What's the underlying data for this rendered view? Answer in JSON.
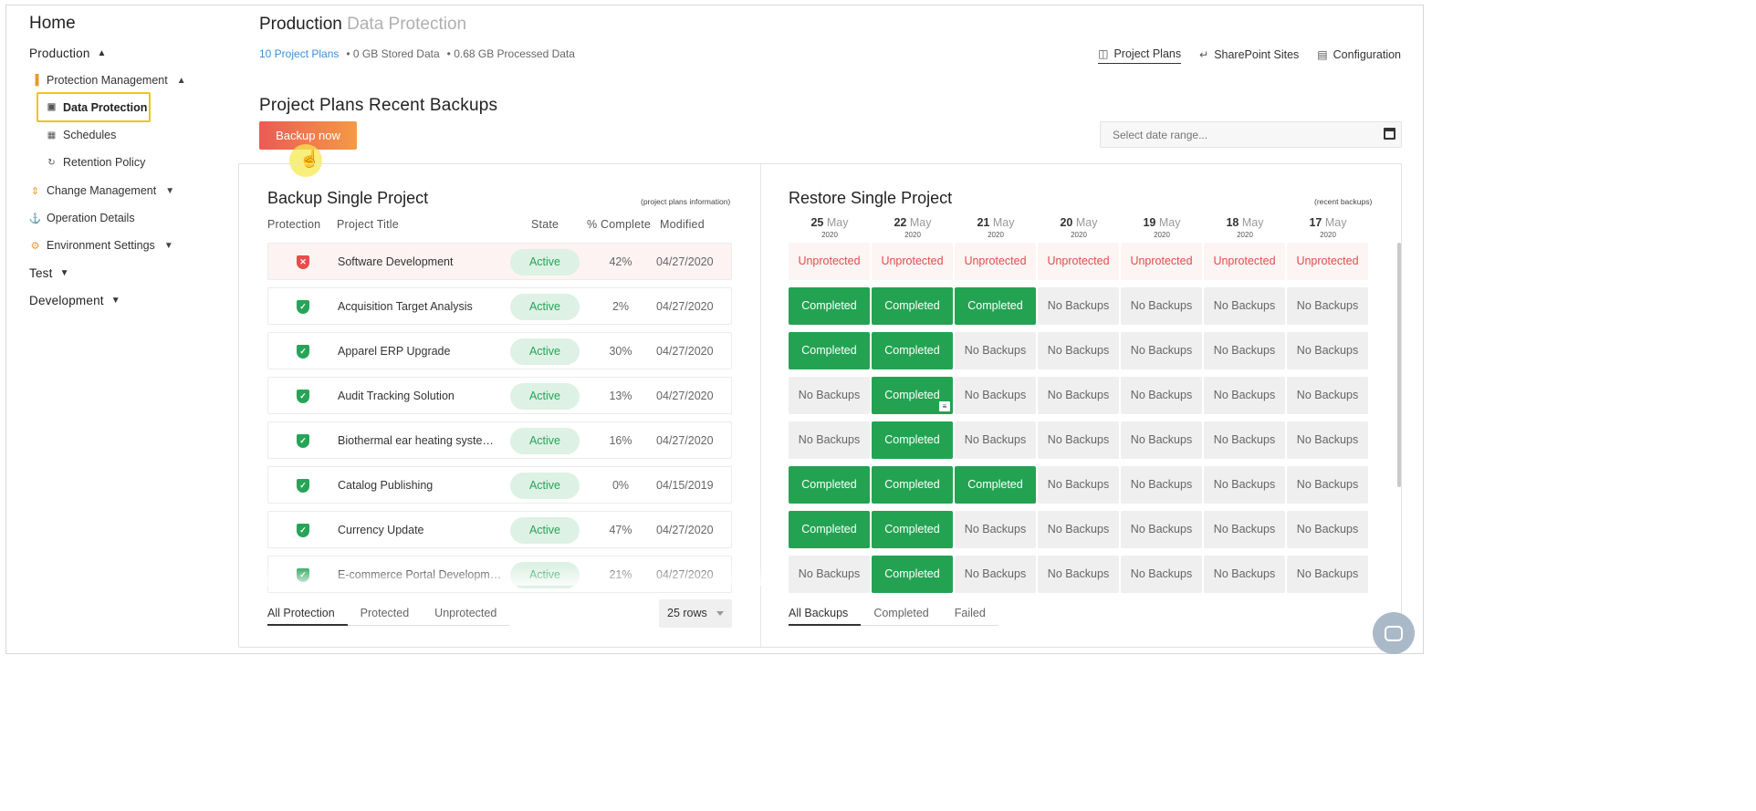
{
  "sidebar": {
    "home": "Home",
    "env_production": "Production",
    "protection_management": "Protection Management",
    "data_protection": "Data Protection",
    "schedules": "Schedules",
    "retention_policy": "Retention Policy",
    "change_management": "Change Management",
    "operation_details": "Operation Details",
    "environment_settings": "Environment Settings",
    "env_test": "Test",
    "env_development": "Development"
  },
  "header": {
    "title": "Production",
    "subtitle": "Data Protection",
    "project_plans_link": "10 Project Plans",
    "stored": "• 0 GB Stored Data",
    "processed": "• 0.68 GB Processed Data",
    "tabs": [
      "Project Plans",
      "SharePoint Sites",
      "Configuration"
    ]
  },
  "main": {
    "section_title": "Project Plans Recent Backups",
    "backup_button": "Backup now",
    "date_placeholder": "Select date range..."
  },
  "backup_panel": {
    "title": "Backup Single Project",
    "note": "(project plans information)",
    "columns": [
      "Protection",
      "Project Title",
      "State",
      "% Complete",
      "Modified"
    ],
    "rows": [
      {
        "title": "Software Development",
        "state": "Active",
        "pct": "42%",
        "modified": "04/27/2020",
        "protected": false
      },
      {
        "title": "Acquisition Target Analysis",
        "state": "Active",
        "pct": "2%",
        "modified": "04/27/2020",
        "protected": true
      },
      {
        "title": "Apparel ERP Upgrade",
        "state": "Active",
        "pct": "30%",
        "modified": "04/27/2020",
        "protected": true
      },
      {
        "title": "Audit Tracking Solution",
        "state": "Active",
        "pct": "13%",
        "modified": "04/27/2020",
        "protected": true
      },
      {
        "title": "Biothermal ear heating system ...",
        "state": "Active",
        "pct": "16%",
        "modified": "04/27/2020",
        "protected": true
      },
      {
        "title": "Catalog Publishing",
        "state": "Active",
        "pct": "0%",
        "modified": "04/15/2019",
        "protected": true
      },
      {
        "title": "Currency Update",
        "state": "Active",
        "pct": "47%",
        "modified": "04/27/2020",
        "protected": true
      },
      {
        "title": "E-commerce Portal Developme...",
        "state": "Active",
        "pct": "21%",
        "modified": "04/27/2020",
        "protected": true
      }
    ],
    "filter_tabs": [
      "All Protection",
      "Protected",
      "Unprotected"
    ],
    "rows_select": "25 rows"
  },
  "restore_panel": {
    "title": "Restore Single Project",
    "note": "(recent backups)",
    "dates": [
      {
        "day": "25",
        "month": "May",
        "year": "2020"
      },
      {
        "day": "22",
        "month": "May",
        "year": "2020"
      },
      {
        "day": "21",
        "month": "May",
        "year": "2020"
      },
      {
        "day": "20",
        "month": "May",
        "year": "2020"
      },
      {
        "day": "19",
        "month": "May",
        "year": "2020"
      },
      {
        "day": "18",
        "month": "May",
        "year": "2020"
      },
      {
        "day": "17",
        "month": "May",
        "year": "2020"
      }
    ],
    "grid": [
      [
        "Unprotected",
        "Unprotected",
        "Unprotected",
        "Unprotected",
        "Unprotected",
        "Unprotected",
        "Unprotected"
      ],
      [
        "Completed",
        "Completed",
        "Completed",
        "No Backups",
        "No Backups",
        "No Backups",
        "No Backups"
      ],
      [
        "Completed",
        "Completed",
        "No Backups",
        "No Backups",
        "No Backups",
        "No Backups",
        "No Backups"
      ],
      [
        "No Backups",
        "Completed",
        "No Backups",
        "No Backups",
        "No Backups",
        "No Backups",
        "No Backups"
      ],
      [
        "No Backups",
        "Completed",
        "No Backups",
        "No Backups",
        "No Backups",
        "No Backups",
        "No Backups"
      ],
      [
        "Completed",
        "Completed",
        "Completed",
        "No Backups",
        "No Backups",
        "No Backups",
        "No Backups"
      ],
      [
        "Completed",
        "Completed",
        "No Backups",
        "No Backups",
        "No Backups",
        "No Backups",
        "No Backups"
      ],
      [
        "No Backups",
        "Completed",
        "No Backups",
        "No Backups",
        "No Backups",
        "No Backups",
        "No Backups"
      ]
    ],
    "filter_tabs": [
      "All Backups",
      "Completed",
      "Failed"
    ]
  },
  "colors": {
    "completed": "#23a352",
    "unprotected": "#e44c4c",
    "link": "#3a8fd8",
    "highlight": "#f6c21c"
  }
}
